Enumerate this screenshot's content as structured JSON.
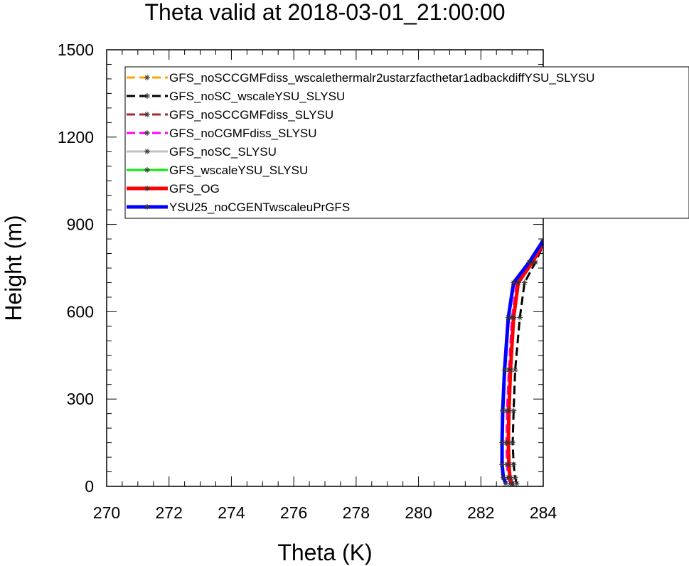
{
  "chart_data": {
    "type": "line",
    "title": "Theta valid at 2018-03-01_21:00:00",
    "xlabel": "Theta (K)",
    "ylabel": "Height (m)",
    "xlim": [
      270,
      284
    ],
    "ylim": [
      0,
      1500
    ],
    "xticks": [
      "270",
      "272",
      "274",
      "276",
      "278",
      "280",
      "282",
      "284"
    ],
    "yticks": [
      "0",
      "300",
      "600",
      "900",
      "1200",
      "1500"
    ],
    "legend_position": "top-left",
    "series": [
      {
        "name": "GFS_noSCCGMFdiss_wscalethermalr2ustarzfacthetar1adbackdiffYSU_SLYSU",
        "color": "#ffa500",
        "dash": true,
        "width": 3,
        "x": [
          283.0,
          282.9,
          282.85,
          282.82,
          282.84,
          282.9,
          283.0,
          283.15,
          283.6,
          283.95
        ],
        "y": [
          10,
          30,
          75,
          150,
          260,
          400,
          580,
          700,
          770,
          830
        ]
      },
      {
        "name": "GFS_noSC_wscaleYSU_SLYSU",
        "color": "#000000",
        "dash": true,
        "width": 3,
        "x": [
          283.15,
          283.1,
          283.05,
          283.02,
          283.05,
          283.1,
          283.25,
          283.4,
          283.75,
          284.0
        ],
        "y": [
          10,
          30,
          75,
          150,
          260,
          400,
          580,
          700,
          770,
          830
        ]
      },
      {
        "name": "GFS_noSCCGMFdiss_SLYSU",
        "color": "#a52a2a",
        "dash": true,
        "width": 3,
        "x": [
          282.95,
          282.88,
          282.84,
          282.82,
          282.84,
          282.9,
          283.0,
          283.15,
          283.6,
          283.95
        ],
        "y": [
          10,
          30,
          75,
          150,
          260,
          400,
          580,
          700,
          770,
          830
        ]
      },
      {
        "name": "GFS_noCGMFdiss_SLYSU",
        "color": "#ff00ff",
        "dash": true,
        "width": 3,
        "x": [
          282.95,
          282.88,
          282.84,
          282.82,
          282.84,
          282.9,
          283.0,
          283.15,
          283.6,
          283.95
        ],
        "y": [
          10,
          30,
          75,
          150,
          260,
          400,
          580,
          700,
          770,
          830
        ]
      },
      {
        "name": "GFS_noSC_SLYSU",
        "color": "#c0c0c0",
        "dash": false,
        "width": 3,
        "x": [
          283.0,
          282.93,
          282.9,
          282.88,
          282.9,
          282.95,
          283.05,
          283.2,
          283.65,
          283.98
        ],
        "y": [
          10,
          30,
          75,
          150,
          260,
          400,
          580,
          700,
          770,
          830
        ]
      },
      {
        "name": "GFS_wscaleYSU_SLYSU",
        "color": "#00ee00",
        "dash": false,
        "width": 3,
        "x": [
          283.02,
          282.95,
          282.9,
          282.88,
          282.9,
          282.95,
          283.05,
          283.2,
          283.65,
          283.98
        ],
        "y": [
          10,
          30,
          75,
          150,
          260,
          400,
          580,
          700,
          770,
          830
        ]
      },
      {
        "name": "GFS_OG",
        "color": "#ff0000",
        "dash": false,
        "width": 5,
        "x": [
          283.0,
          282.93,
          282.9,
          282.88,
          282.9,
          282.95,
          283.05,
          283.2,
          283.65,
          283.98
        ],
        "y": [
          10,
          30,
          75,
          150,
          260,
          400,
          580,
          700,
          770,
          830
        ]
      },
      {
        "name": "YSU25_noCGENTwscaleuPrGFS",
        "color": "#0000ff",
        "dash": false,
        "width": 5,
        "x": [
          282.8,
          282.72,
          282.68,
          282.68,
          282.7,
          282.76,
          282.88,
          283.05,
          283.55,
          284.0
        ],
        "y": [
          10,
          30,
          75,
          150,
          260,
          400,
          580,
          700,
          770,
          845
        ]
      }
    ]
  }
}
